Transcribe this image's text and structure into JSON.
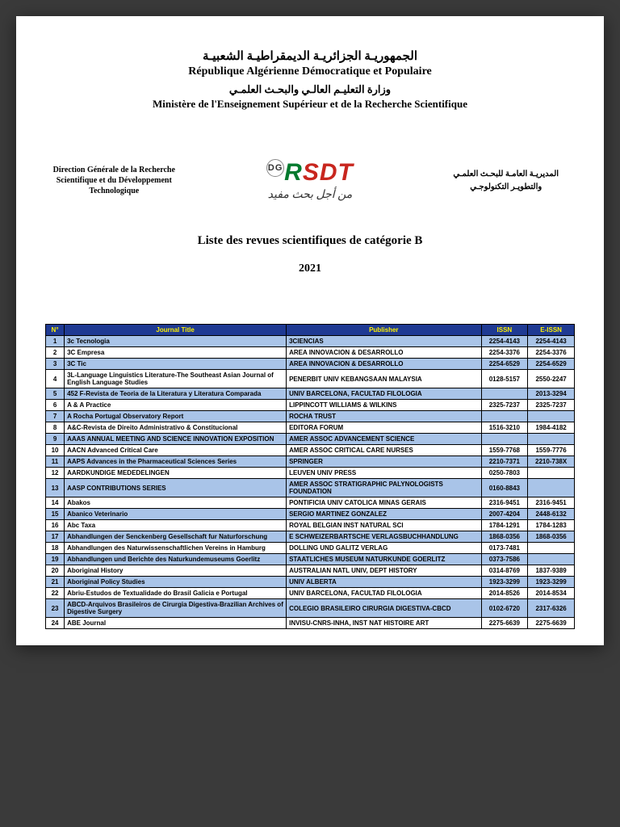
{
  "header": {
    "line1_ar": "الجمهوريـة الجزائريـة الديمقراطيـة الشعبيـة",
    "line1_fr": "République Algérienne Démocratique et Populaire",
    "line2_ar": "وزارة التعليـم العالـي والبحـث العلمـي",
    "line2_fr": "Ministère de l'Enseignement Supérieur et de la Recherche Scientifique"
  },
  "mid": {
    "left": "Direction Générale de la Recherche Scientifique et du Développement Technologique",
    "right_l1": "المديريـة العامـة للبحـث العلمـي",
    "right_l2": "والتطويـر التكنولوجـي",
    "logo_dg": "DG",
    "logo_r": "R",
    "logo_sdt": "SDT",
    "logo_tag": "من أجل بحث مفيد"
  },
  "title": "Liste des revues scientifiques de catégorie B",
  "year": "2021",
  "table": {
    "headers": [
      "N°",
      "Journal Title",
      "Publisher",
      "ISSN",
      "E-ISSN"
    ],
    "rows": [
      {
        "n": "1",
        "t": "3c Tecnologia",
        "p": "3CIENCIAS",
        "i": "2254-4143",
        "e": "2254-4143",
        "alt": true
      },
      {
        "n": "2",
        "t": "3C Empresa",
        "p": "AREA INNOVACION & DESARROLLO",
        "i": "2254-3376",
        "e": "2254-3376",
        "alt": false
      },
      {
        "n": "3",
        "t": "3C Tic",
        "p": "AREA INNOVACION & DESARROLLO",
        "i": "2254-6529",
        "e": "2254-6529",
        "alt": true
      },
      {
        "n": "4",
        "t": "3L-Language Linguistics Literature-The Southeast Asian Journal of English Language Studies",
        "p": "PENERBIT UNIV KEBANGSAAN MALAYSIA",
        "i": "0128-5157",
        "e": "2550-2247",
        "alt": false
      },
      {
        "n": "5",
        "t": "452 F-Revista de Teoria de la Literatura y Literatura Comparada",
        "p": "UNIV BARCELONA, FACULTAD FILOLOGIA",
        "i": "",
        "e": "2013-3294",
        "alt": true
      },
      {
        "n": "6",
        "t": "A & A Practice",
        "p": "LIPPINCOTT WILLIAMS & WILKINS",
        "i": "2325-7237",
        "e": "2325-7237",
        "alt": false
      },
      {
        "n": "7",
        "t": "A Rocha Portugal Observatory Report",
        "p": "ROCHA TRUST",
        "i": "",
        "e": "",
        "alt": true
      },
      {
        "n": "8",
        "t": "A&C-Revista de Direito Administrativo & Constitucional",
        "p": "EDITORA FORUM",
        "i": "1516-3210",
        "e": "1984-4182",
        "alt": false
      },
      {
        "n": "9",
        "t": "AAAS ANNUAL MEETING AND SCIENCE INNOVATION EXPOSITION",
        "p": "AMER ASSOC ADVANCEMENT SCIENCE",
        "i": "",
        "e": "",
        "alt": true
      },
      {
        "n": "10",
        "t": "AACN Advanced Critical Care",
        "p": "AMER ASSOC CRITICAL CARE NURSES",
        "i": "1559-7768",
        "e": "1559-7776",
        "alt": false
      },
      {
        "n": "11",
        "t": "AAPS Advances in the Pharmaceutical Sciences Series",
        "p": "SPRINGER",
        "i": "2210-7371",
        "e": "2210-738X",
        "alt": true
      },
      {
        "n": "12",
        "t": "AARDKUNDIGE MEDEDELINGEN",
        "p": "LEUVEN UNIV PRESS",
        "i": "0250-7803",
        "e": "",
        "alt": false
      },
      {
        "n": "13",
        "t": "AASP CONTRIBUTIONS SERIES",
        "p": "AMER ASSOC STRATIGRAPHIC PALYNOLOGISTS FOUNDATION",
        "i": "0160-8843",
        "e": "",
        "alt": true
      },
      {
        "n": "14",
        "t": "Abakos",
        "p": "PONTIFICIA UNIV CATOLICA MINAS GERAIS",
        "i": "2316-9451",
        "e": "2316-9451",
        "alt": false
      },
      {
        "n": "15",
        "t": "Abanico Veterinario",
        "p": "SERGIO MARTINEZ GONZALEZ",
        "i": "2007-4204",
        "e": "2448-6132",
        "alt": true
      },
      {
        "n": "16",
        "t": "Abc Taxa",
        "p": "ROYAL BELGIAN INST NATURAL SCI",
        "i": "1784-1291",
        "e": "1784-1283",
        "alt": false
      },
      {
        "n": "17",
        "t": "Abhandlungen der Senckenberg Gesellschaft fur Naturforschung",
        "p": "E SCHWEIZERBARTSCHE VERLAGSBUCHHANDLUNG",
        "i": "1868-0356",
        "e": "1868-0356",
        "alt": true
      },
      {
        "n": "18",
        "t": "Abhandlungen des Naturwissenschaftlichen Vereins in Hamburg",
        "p": "DOLLING UND GALITZ VERLAG",
        "i": "0173-7481",
        "e": "",
        "alt": false
      },
      {
        "n": "19",
        "t": "Abhandlungen und Berichte des Naturkundemuseums Goerlitz",
        "p": "STAATLICHES MUSEUM NATURKUNDE GOERLITZ",
        "i": "0373-7586",
        "e": "",
        "alt": true
      },
      {
        "n": "20",
        "t": "Aboriginal History",
        "p": "AUSTRALIAN NATL UNIV, DEPT HISTORY",
        "i": "0314-8769",
        "e": "1837-9389",
        "alt": false
      },
      {
        "n": "21",
        "t": "Aboriginal Policy Studies",
        "p": "UNIV ALBERTA",
        "i": "1923-3299",
        "e": "1923-3299",
        "alt": true
      },
      {
        "n": "22",
        "t": "Abriu-Estudos de Textualidade do Brasil Galicia e Portugal",
        "p": "UNIV BARCELONA, FACULTAD FILOLOGIA",
        "i": "2014-8526",
        "e": "2014-8534",
        "alt": false
      },
      {
        "n": "23",
        "t": "ABCD-Arquivos Brasileiros de Cirurgia Digestiva-Brazilian Archives of Digestive Surgery",
        "p": "COLEGIO BRASILEIRO CIRURGIA DIGESTIVA-CBCD",
        "i": "0102-6720",
        "e": "2317-6326",
        "alt": true
      },
      {
        "n": "24",
        "t": "ABE Journal",
        "p": "INVISU-CNRS-INHA, INST NAT HISTOIRE ART",
        "i": "2275-6639",
        "e": "2275-6639",
        "alt": false
      }
    ]
  }
}
